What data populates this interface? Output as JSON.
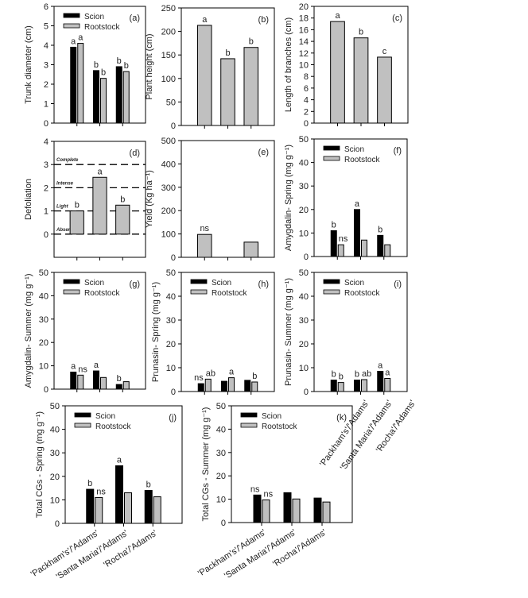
{
  "chart_data": [
    {
      "id": "a",
      "type": "bar",
      "panel_label": "(a)",
      "ylabel": "Trunk diameter (cm)",
      "ylim": [
        0,
        6
      ],
      "yticks": [
        0,
        1,
        2,
        3,
        4,
        5,
        6
      ],
      "legend": true,
      "series": [
        {
          "name": "Scion",
          "color": "#000000",
          "values": [
            3.9,
            2.7,
            2.9
          ],
          "letters": [
            "a",
            "b",
            "b"
          ]
        },
        {
          "name": "Rootstock",
          "color": "#c0c0c0",
          "values": [
            4.1,
            2.3,
            2.65
          ],
          "letters": [
            "a",
            "b",
            "b"
          ]
        }
      ]
    },
    {
      "id": "b",
      "type": "bar",
      "panel_label": "(b)",
      "ylabel": "Plant height (cm)",
      "ylim": [
        0,
        250
      ],
      "yticks": [
        0,
        50,
        100,
        150,
        200,
        250
      ],
      "legend": false,
      "series": [
        {
          "color": "#c0c0c0",
          "values": [
            213,
            142,
            166
          ],
          "letters": [
            "a",
            "b",
            "b"
          ]
        }
      ]
    },
    {
      "id": "c",
      "type": "bar",
      "panel_label": "(c)",
      "ylabel": "Length of branches (cm)",
      "ylim": [
        0,
        20
      ],
      "yticks": [
        0,
        2,
        4,
        6,
        8,
        10,
        12,
        14,
        16,
        18,
        20
      ],
      "legend": false,
      "series": [
        {
          "color": "#c0c0c0",
          "values": [
            17.4,
            14.6,
            11.3
          ],
          "letters": [
            "a",
            "b",
            "c"
          ]
        }
      ]
    },
    {
      "id": "d",
      "type": "bar",
      "panel_label": "(d)",
      "ylabel": "Defoliation",
      "ylim": [
        -1,
        4
      ],
      "yticks": [
        0,
        1,
        2,
        3,
        4
      ],
      "legend": false,
      "reference_lines": [
        {
          "value": 0,
          "label": "Absent"
        },
        {
          "value": 1,
          "label": "Light"
        },
        {
          "value": 2,
          "label": "Intense"
        },
        {
          "value": 3,
          "label": "Complete"
        }
      ],
      "series": [
        {
          "color": "#c0c0c0",
          "values": [
            1.0,
            2.45,
            1.25
          ],
          "letters": [
            "b",
            "a",
            "b"
          ]
        }
      ]
    },
    {
      "id": "e",
      "type": "bar",
      "panel_label": "(e)",
      "ylabel": "Yield (Kg ha⁻¹)",
      "ylim": [
        0,
        500
      ],
      "yticks": [
        0,
        100,
        200,
        300,
        400,
        500
      ],
      "legend": false,
      "series": [
        {
          "color": "#c0c0c0",
          "values": [
            98,
            null,
            65
          ],
          "letters": [
            "ns",
            "",
            ""
          ]
        }
      ]
    },
    {
      "id": "f",
      "type": "bar",
      "panel_label": "(f)",
      "ylabel": "Amygdalin- Spring (mg g⁻¹)",
      "ylim": [
        0,
        50
      ],
      "yticks": [
        0,
        10,
        20,
        30,
        40,
        50
      ],
      "legend": true,
      "series": [
        {
          "name": "Scion",
          "color": "#000000",
          "values": [
            11,
            20,
            9
          ],
          "letters": [
            "b",
            "a",
            "b"
          ]
        },
        {
          "name": "Rootstock",
          "color": "#c0c0c0",
          "values": [
            5,
            7,
            5
          ],
          "letters": [
            "ns",
            "",
            ""
          ]
        }
      ]
    },
    {
      "id": "g",
      "type": "bar",
      "panel_label": "(g)",
      "ylabel": "Amygdalin- Summer (mg g⁻¹)",
      "ylim": [
        0,
        50
      ],
      "yticks": [
        0,
        10,
        20,
        30,
        40,
        50
      ],
      "legend": true,
      "series": [
        {
          "name": "Scion",
          "color": "#000000",
          "values": [
            7.3,
            7.8,
            2
          ],
          "letters": [
            "a",
            "a",
            "b"
          ]
        },
        {
          "name": "Rootstock",
          "color": "#c0c0c0",
          "values": [
            6,
            5,
            3.2
          ],
          "letters": [
            "ns",
            "",
            ""
          ]
        }
      ]
    },
    {
      "id": "h",
      "type": "bar",
      "panel_label": "(h)",
      "ylabel": "Prunasin- Spring (mg g⁻¹)",
      "ylim": [
        0,
        50
      ],
      "yticks": [
        0,
        10,
        20,
        30,
        40,
        50
      ],
      "legend": true,
      "series": [
        {
          "name": "Scion",
          "color": "#000000",
          "values": [
            3.3,
            4.3,
            4.7
          ],
          "letters": [
            "ns",
            "",
            ""
          ]
        },
        {
          "name": "Rootstock",
          "color": "#c0c0c0",
          "values": [
            5.2,
            5.8,
            4
          ],
          "letters": [
            "ab",
            "a",
            "b"
          ]
        }
      ]
    },
    {
      "id": "i",
      "type": "bar",
      "panel_label": "(i)",
      "ylabel": "Prunasin- Summer (mg g⁻¹)",
      "ylim": [
        0,
        50
      ],
      "yticks": [
        0,
        10,
        20,
        30,
        40,
        50
      ],
      "legend": true,
      "show_categories": true,
      "series": [
        {
          "name": "Scion",
          "color": "#000000",
          "values": [
            4.8,
            4.8,
            8.5
          ],
          "letters": [
            "b",
            "b",
            "a"
          ]
        },
        {
          "name": "Rootstock",
          "color": "#c0c0c0",
          "values": [
            3.8,
            5,
            5.5
          ],
          "letters": [
            "b",
            "ab",
            "a"
          ]
        }
      ]
    },
    {
      "id": "j",
      "type": "bar",
      "panel_label": "(j)",
      "ylabel": "Total CGs - Spring (mg g⁻¹)",
      "ylim": [
        0,
        50
      ],
      "yticks": [
        0,
        10,
        20,
        30,
        40,
        50
      ],
      "legend": true,
      "show_categories": true,
      "series": [
        {
          "name": "Scion",
          "color": "#000000",
          "values": [
            14.5,
            24.5,
            14
          ],
          "letters": [
            "b",
            "a",
            "b"
          ]
        },
        {
          "name": "Rootstock",
          "color": "#c0c0c0",
          "values": [
            11,
            13,
            11.3
          ],
          "letters": [
            "ns",
            "",
            ""
          ]
        }
      ]
    },
    {
      "id": "k",
      "type": "bar",
      "panel_label": "(k)",
      "ylabel": "Total CGs - Summer (mg g⁻¹)",
      "ylim": [
        0,
        50
      ],
      "yticks": [
        0,
        10,
        20,
        30,
        40,
        50
      ],
      "legend": true,
      "show_categories": true,
      "series": [
        {
          "name": "Scion",
          "color": "#000000",
          "values": [
            11.8,
            12.8,
            10.5
          ],
          "letters": [
            "ns",
            "",
            ""
          ]
        },
        {
          "name": "Rootstock",
          "color": "#c0c0c0",
          "values": [
            9.7,
            10.1,
            8.8
          ],
          "letters": [
            "ns",
            "",
            ""
          ]
        }
      ]
    }
  ],
  "categories": [
    "'Packham's'/'Adams'",
    "'Santa Maria'/'Adams'",
    "'Rocha'/'Adams'"
  ]
}
